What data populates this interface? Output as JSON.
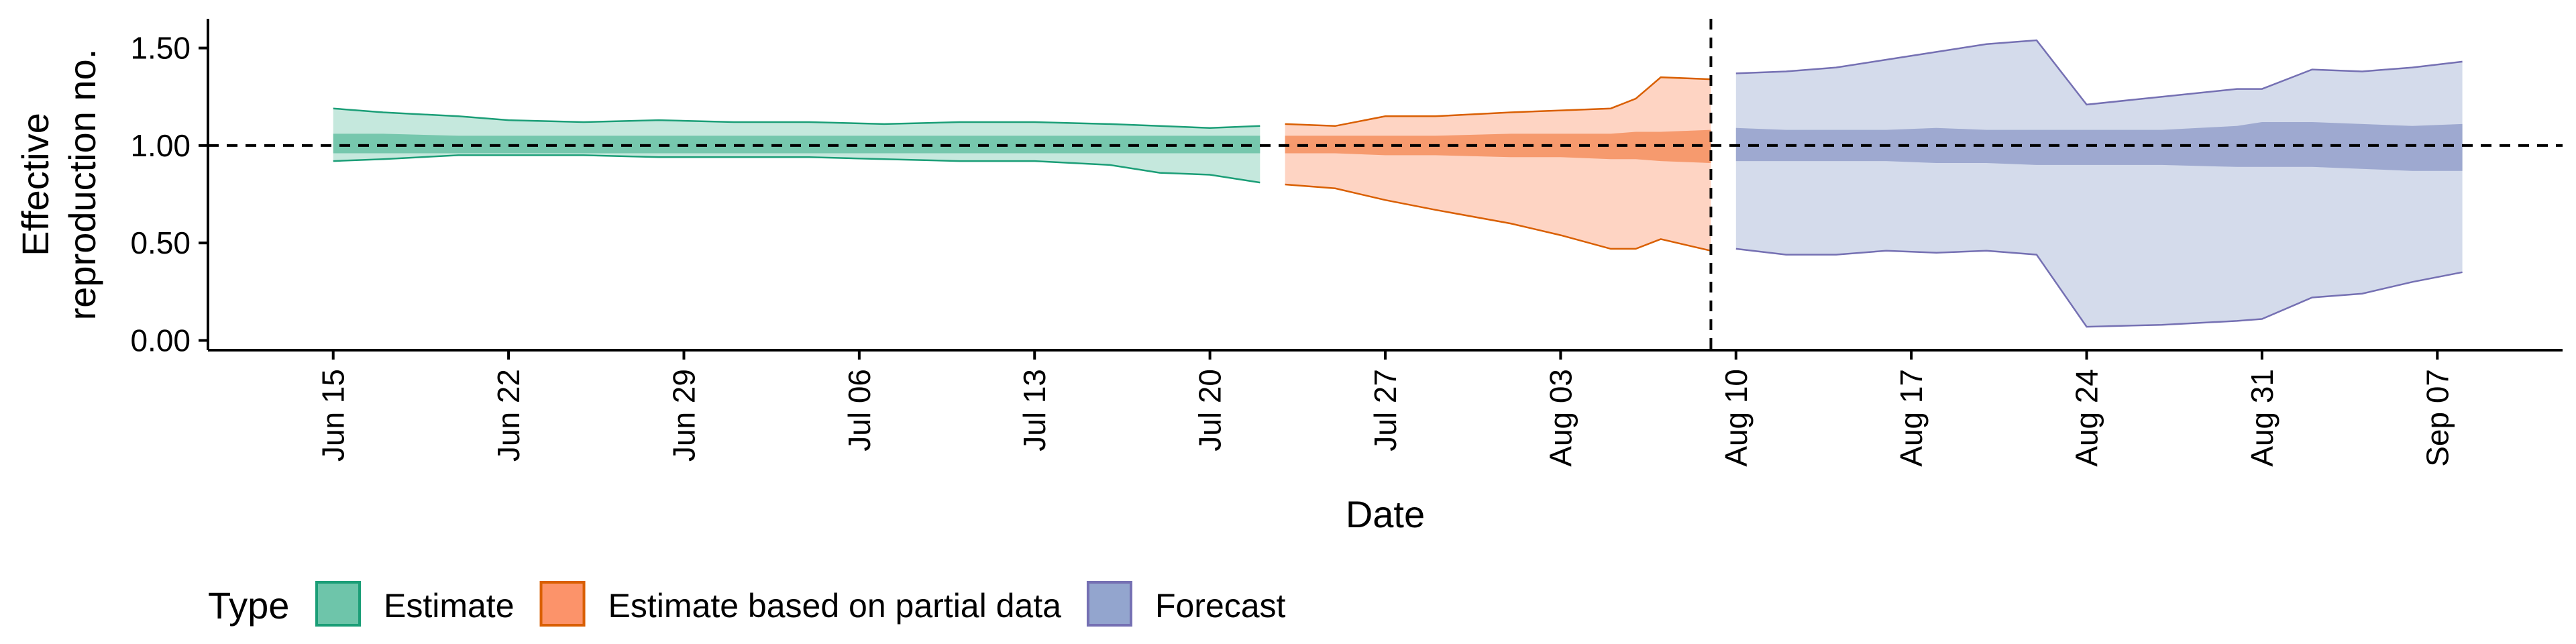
{
  "chart_data": {
    "type": "area",
    "xlabel": "Date",
    "ylabel": "Effective\nreproduction no.",
    "ylim": [
      -0.05,
      1.65
    ],
    "y_ticks": [
      {
        "value": 0.0,
        "label": "0.00"
      },
      {
        "value": 0.5,
        "label": "0.50"
      },
      {
        "value": 1.0,
        "label": "1.00"
      },
      {
        "value": 1.5,
        "label": "1.50"
      }
    ],
    "x_ticks": [
      "Jun 15",
      "Jun 22",
      "Jun 29",
      "Jul 06",
      "Jul 13",
      "Jul 20",
      "Jul 27",
      "Aug 03",
      "Aug 10",
      "Aug 17",
      "Aug 24",
      "Aug 31",
      "Sep 07"
    ],
    "x_range": [
      "Jun 10",
      "Sep 12"
    ],
    "reference_line_y": 1.0,
    "vertical_line_date": "Aug 09",
    "grid": false,
    "legend": {
      "title": "Type",
      "position": "bottom",
      "items": [
        "Estimate",
        "Estimate based on partial data",
        "Forecast"
      ]
    },
    "series": [
      {
        "name": "Estimate",
        "fill": "#66c2a5",
        "stroke": "#1b9e77",
        "x": [
          "Jun 15",
          "Jun 17",
          "Jun 20",
          "Jun 22",
          "Jun 25",
          "Jun 28",
          "Jul 01",
          "Jul 04",
          "Jul 07",
          "Jul 10",
          "Jul 13",
          "Jul 16",
          "Jul 18",
          "Jul 20",
          "Jul 22"
        ],
        "upper90": [
          1.19,
          1.17,
          1.15,
          1.13,
          1.12,
          1.13,
          1.12,
          1.12,
          1.11,
          1.12,
          1.12,
          1.11,
          1.1,
          1.09,
          1.1
        ],
        "upper50": [
          1.06,
          1.06,
          1.05,
          1.05,
          1.05,
          1.05,
          1.05,
          1.05,
          1.05,
          1.05,
          1.05,
          1.05,
          1.05,
          1.05,
          1.05
        ],
        "lower50": [
          0.96,
          0.96,
          0.96,
          0.96,
          0.96,
          0.96,
          0.96,
          0.96,
          0.96,
          0.96,
          0.96,
          0.96,
          0.96,
          0.96,
          0.96
        ],
        "lower90": [
          0.92,
          0.93,
          0.95,
          0.95,
          0.95,
          0.94,
          0.94,
          0.94,
          0.93,
          0.92,
          0.92,
          0.9,
          0.86,
          0.85,
          0.81
        ]
      },
      {
        "name": "Estimate based on partial data",
        "fill": "#fc8d62",
        "stroke": "#d95f02",
        "x": [
          "Jul 23",
          "Jul 25",
          "Jul 27",
          "Jul 29",
          "Aug 01",
          "Aug 03",
          "Aug 05",
          "Aug 06",
          "Aug 07",
          "Aug 09"
        ],
        "upper90": [
          1.11,
          1.1,
          1.15,
          1.15,
          1.17,
          1.18,
          1.19,
          1.24,
          1.35,
          1.34
        ],
        "upper50": [
          1.05,
          1.05,
          1.05,
          1.05,
          1.06,
          1.06,
          1.06,
          1.07,
          1.07,
          1.08
        ],
        "lower50": [
          0.96,
          0.96,
          0.95,
          0.95,
          0.94,
          0.94,
          0.93,
          0.93,
          0.92,
          0.91
        ],
        "lower90": [
          0.8,
          0.78,
          0.72,
          0.67,
          0.6,
          0.54,
          0.47,
          0.47,
          0.52,
          0.46
        ]
      },
      {
        "name": "Forecast",
        "fill": "#8da0cb",
        "stroke": "#7570b3",
        "x": [
          "Aug 10",
          "Aug 12",
          "Aug 14",
          "Aug 16",
          "Aug 18",
          "Aug 20",
          "Aug 22",
          "Aug 24",
          "Aug 27",
          "Aug 30",
          "Aug 31",
          "Sep 02",
          "Sep 04",
          "Sep 06",
          "Sep 08"
        ],
        "upper90": [
          1.37,
          1.38,
          1.4,
          1.44,
          1.48,
          1.52,
          1.54,
          1.21,
          1.25,
          1.29,
          1.29,
          1.39,
          1.38,
          1.4,
          1.43
        ],
        "upper50": [
          1.09,
          1.08,
          1.08,
          1.08,
          1.09,
          1.08,
          1.08,
          1.08,
          1.08,
          1.1,
          1.12,
          1.12,
          1.11,
          1.1,
          1.11
        ],
        "lower50": [
          0.92,
          0.92,
          0.92,
          0.92,
          0.91,
          0.91,
          0.9,
          0.9,
          0.9,
          0.89,
          0.89,
          0.89,
          0.88,
          0.87,
          0.87
        ],
        "lower90": [
          0.47,
          0.44,
          0.44,
          0.46,
          0.45,
          0.46,
          0.44,
          0.07,
          0.08,
          0.1,
          0.11,
          0.22,
          0.24,
          0.3,
          0.35
        ]
      }
    ]
  }
}
